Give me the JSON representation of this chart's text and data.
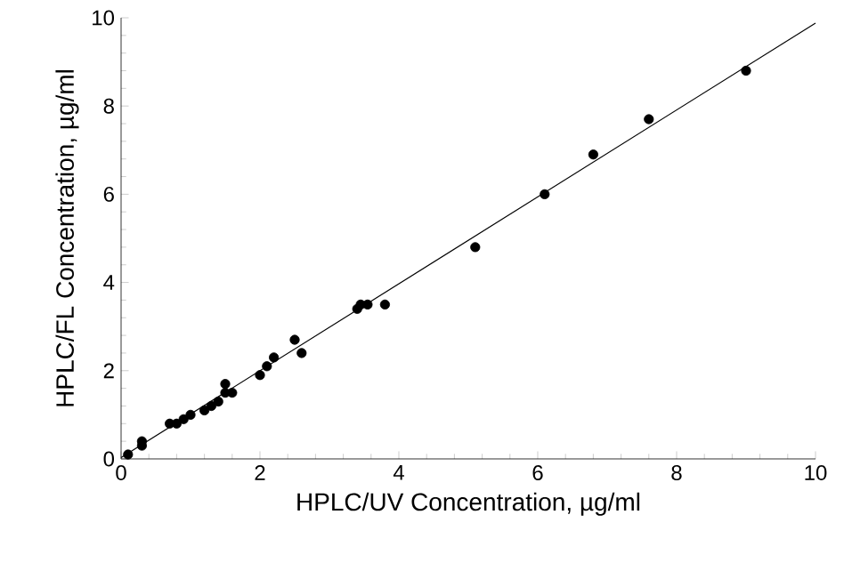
{
  "chart_data": {
    "type": "scatter",
    "xlabel": "HPLC/UV Concentration, µg/ml",
    "ylabel": "HPLC/FL  Concentration, µg/ml",
    "xlim": [
      0,
      10
    ],
    "ylim": [
      0,
      10
    ],
    "xticks": [
      0,
      2,
      4,
      6,
      8,
      10
    ],
    "yticks": [
      0,
      2,
      4,
      6,
      8,
      10
    ],
    "grid": false,
    "series": [
      {
        "marker": "circle",
        "color": "#000000",
        "x": [
          0.1,
          0.3,
          0.3,
          0.7,
          0.8,
          0.9,
          1.0,
          1.2,
          1.3,
          1.4,
          1.5,
          1.5,
          1.6,
          2.0,
          2.1,
          2.2,
          2.5,
          2.6,
          3.4,
          3.45,
          3.55,
          3.8,
          5.1,
          6.1,
          6.8,
          7.6,
          9.0
        ],
        "values": [
          0.1,
          0.3,
          0.4,
          0.8,
          0.8,
          0.9,
          1.0,
          1.1,
          1.2,
          1.3,
          1.7,
          1.5,
          1.5,
          1.9,
          2.1,
          2.3,
          2.7,
          2.4,
          3.4,
          3.5,
          3.5,
          3.5,
          4.8,
          6.0,
          6.9,
          7.7,
          8.8
        ]
      },
      {
        "type": "line",
        "marker": "none",
        "color": "#000000",
        "x": [
          0,
          10
        ],
        "values": [
          0.03,
          9.88
        ]
      }
    ]
  }
}
